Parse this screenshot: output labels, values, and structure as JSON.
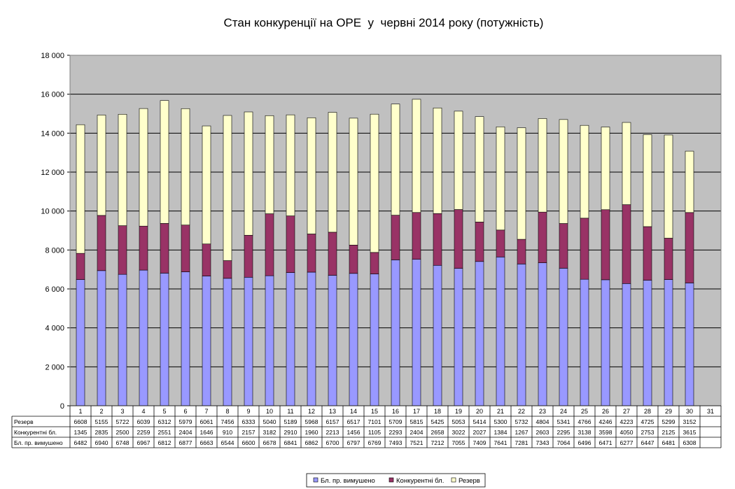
{
  "chart_data": {
    "type": "bar",
    "stacked": true,
    "title": "Стан конкуренції на ОРЕ  у  червні 2014 року (потужність)",
    "xlabel": "",
    "ylabel": "",
    "ylim": [
      0,
      18000
    ],
    "yticks": [
      0,
      2000,
      4000,
      6000,
      8000,
      10000,
      12000,
      14000,
      16000,
      18000
    ],
    "ytick_labels": [
      "0",
      "2 000",
      "4 000",
      "6 000",
      "8 000",
      "10 000",
      "12 000",
      "14 000",
      "16 000",
      "18 000"
    ],
    "grid": true,
    "legend_position": "bottom",
    "plot_background": "#c0c0c0",
    "categories": [
      "1",
      "2",
      "3",
      "4",
      "5",
      "6",
      "7",
      "8",
      "9",
      "10",
      "11",
      "12",
      "13",
      "14",
      "15",
      "16",
      "17",
      "18",
      "19",
      "20",
      "21",
      "22",
      "23",
      "24",
      "25",
      "26",
      "27",
      "28",
      "29",
      "30",
      "31"
    ],
    "series": [
      {
        "name": "Бл. пр. вимушено",
        "color": "#9999ff",
        "values": [
          6482,
          6940,
          6748,
          6967,
          6812,
          6877,
          6663,
          6544,
          6600,
          6678,
          6841,
          6862,
          6700,
          6797,
          6769,
          7493,
          7521,
          7212,
          7055,
          7409,
          7641,
          7281,
          7343,
          7064,
          6496,
          6471,
          6277,
          6447,
          6481,
          6308,
          null
        ]
      },
      {
        "name": "Конкурентні бл.",
        "color": "#993366",
        "values": [
          1345,
          2835,
          2500,
          2259,
          2551,
          2404,
          1646,
          910,
          2157,
          3182,
          2910,
          1960,
          2213,
          1456,
          1105,
          2293,
          2404,
          2658,
          3022,
          2027,
          1384,
          1267,
          2603,
          2295,
          3138,
          3598,
          4050,
          2753,
          2125,
          3615,
          null
        ]
      },
      {
        "name": "Резерв",
        "color": "#ffffcc",
        "values": [
          6608,
          5155,
          5722,
          6039,
          6312,
          5979,
          6061,
          7456,
          6333,
          5040,
          5189,
          5968,
          6157,
          6517,
          7101,
          5709,
          5815,
          5425,
          5053,
          5414,
          5300,
          5732,
          4804,
          5341,
          4766,
          4246,
          4223,
          4725,
          5299,
          3152,
          null
        ]
      }
    ],
    "table": {
      "row_order": [
        "Резерв",
        "Конкурентні бл.",
        "Бл. пр. вимушено"
      ]
    }
  }
}
